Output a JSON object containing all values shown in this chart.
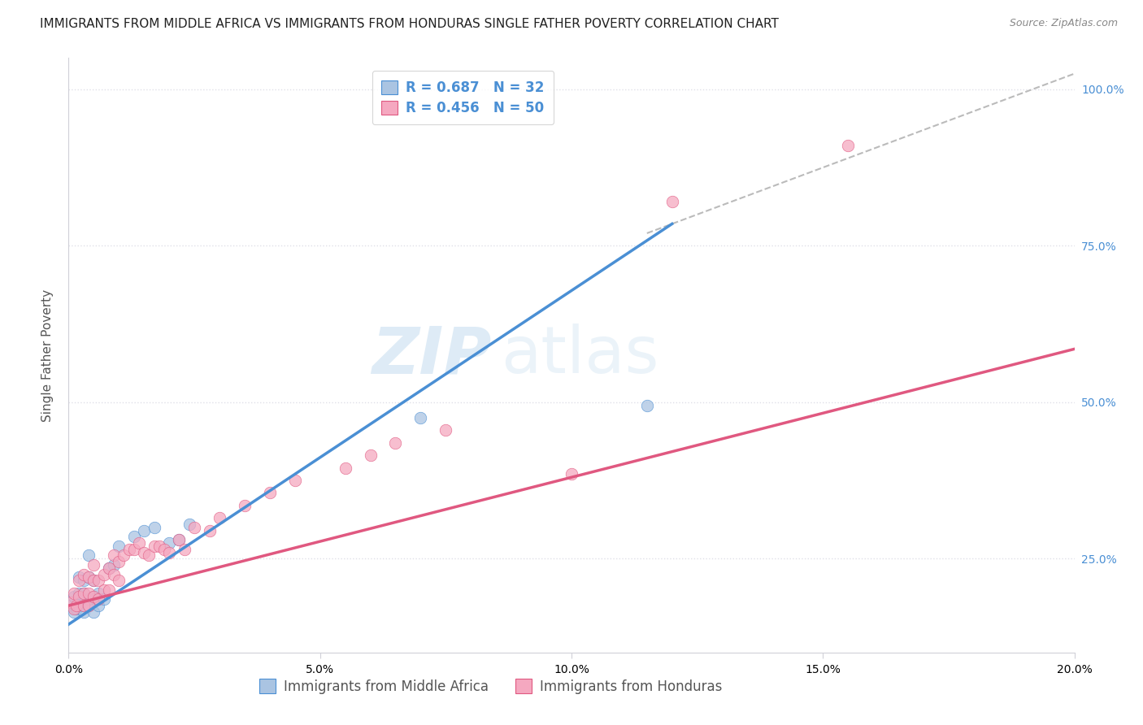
{
  "title": "IMMIGRANTS FROM MIDDLE AFRICA VS IMMIGRANTS FROM HONDURAS SINGLE FATHER POVERTY CORRELATION CHART",
  "source": "Source: ZipAtlas.com",
  "ylabel": "Single Father Poverty",
  "legend_label_blue": "Immigrants from Middle Africa",
  "legend_label_pink": "Immigrants from Honduras",
  "R_blue": 0.687,
  "N_blue": 32,
  "R_pink": 0.456,
  "N_pink": 50,
  "blue_color": "#aac4e2",
  "pink_color": "#f5a8c0",
  "blue_line_color": "#4a8fd4",
  "pink_line_color": "#e05880",
  "dashed_line_color": "#bbbbbb",
  "xmin": 0.0,
  "xmax": 0.2,
  "ymin": 0.1,
  "ymax": 1.05,
  "xticks": [
    0.0,
    0.05,
    0.1,
    0.15,
    0.2
  ],
  "yticks": [
    0.25,
    0.5,
    0.75,
    1.0
  ],
  "blue_scatter_x": [
    0.0005,
    0.001,
    0.001,
    0.0015,
    0.002,
    0.002,
    0.002,
    0.003,
    0.003,
    0.003,
    0.003,
    0.004,
    0.004,
    0.004,
    0.004,
    0.005,
    0.005,
    0.005,
    0.006,
    0.006,
    0.007,
    0.008,
    0.009,
    0.01,
    0.013,
    0.015,
    0.017,
    0.02,
    0.022,
    0.024,
    0.07,
    0.115
  ],
  "blue_scatter_y": [
    0.175,
    0.165,
    0.19,
    0.17,
    0.175,
    0.195,
    0.22,
    0.165,
    0.175,
    0.195,
    0.215,
    0.175,
    0.185,
    0.22,
    0.255,
    0.165,
    0.19,
    0.215,
    0.175,
    0.195,
    0.185,
    0.235,
    0.24,
    0.27,
    0.285,
    0.295,
    0.3,
    0.275,
    0.28,
    0.305,
    0.475,
    0.495
  ],
  "pink_scatter_x": [
    0.0005,
    0.001,
    0.001,
    0.0015,
    0.002,
    0.002,
    0.003,
    0.003,
    0.003,
    0.004,
    0.004,
    0.004,
    0.005,
    0.005,
    0.005,
    0.006,
    0.006,
    0.007,
    0.007,
    0.008,
    0.008,
    0.009,
    0.009,
    0.01,
    0.01,
    0.011,
    0.012,
    0.013,
    0.014,
    0.015,
    0.016,
    0.017,
    0.018,
    0.019,
    0.02,
    0.022,
    0.023,
    0.025,
    0.028,
    0.03,
    0.035,
    0.04,
    0.045,
    0.055,
    0.06,
    0.065,
    0.075,
    0.1,
    0.12,
    0.155
  ],
  "pink_scatter_y": [
    0.18,
    0.17,
    0.195,
    0.175,
    0.19,
    0.215,
    0.175,
    0.195,
    0.225,
    0.175,
    0.195,
    0.22,
    0.19,
    0.215,
    0.24,
    0.185,
    0.215,
    0.2,
    0.225,
    0.2,
    0.235,
    0.225,
    0.255,
    0.215,
    0.245,
    0.255,
    0.265,
    0.265,
    0.275,
    0.26,
    0.255,
    0.27,
    0.27,
    0.265,
    0.26,
    0.28,
    0.265,
    0.3,
    0.295,
    0.315,
    0.335,
    0.355,
    0.375,
    0.395,
    0.415,
    0.435,
    0.455,
    0.385,
    0.82,
    0.91
  ],
  "blue_line_x": [
    0.0,
    0.12
  ],
  "blue_line_y": [
    0.145,
    0.785
  ],
  "pink_line_x": [
    0.0,
    0.2
  ],
  "pink_line_y": [
    0.175,
    0.585
  ],
  "dashed_line_x": [
    0.115,
    0.205
  ],
  "dashed_line_y": [
    0.77,
    1.04
  ],
  "watermark_zip": "ZIP",
  "watermark_atlas": "atlas",
  "background_color": "#ffffff",
  "title_fontsize": 11,
  "axis_label_fontsize": 11,
  "tick_fontsize": 10,
  "legend_fontsize": 12,
  "grid_color": "#e0e0e8",
  "spine_color": "#d0d0d8"
}
